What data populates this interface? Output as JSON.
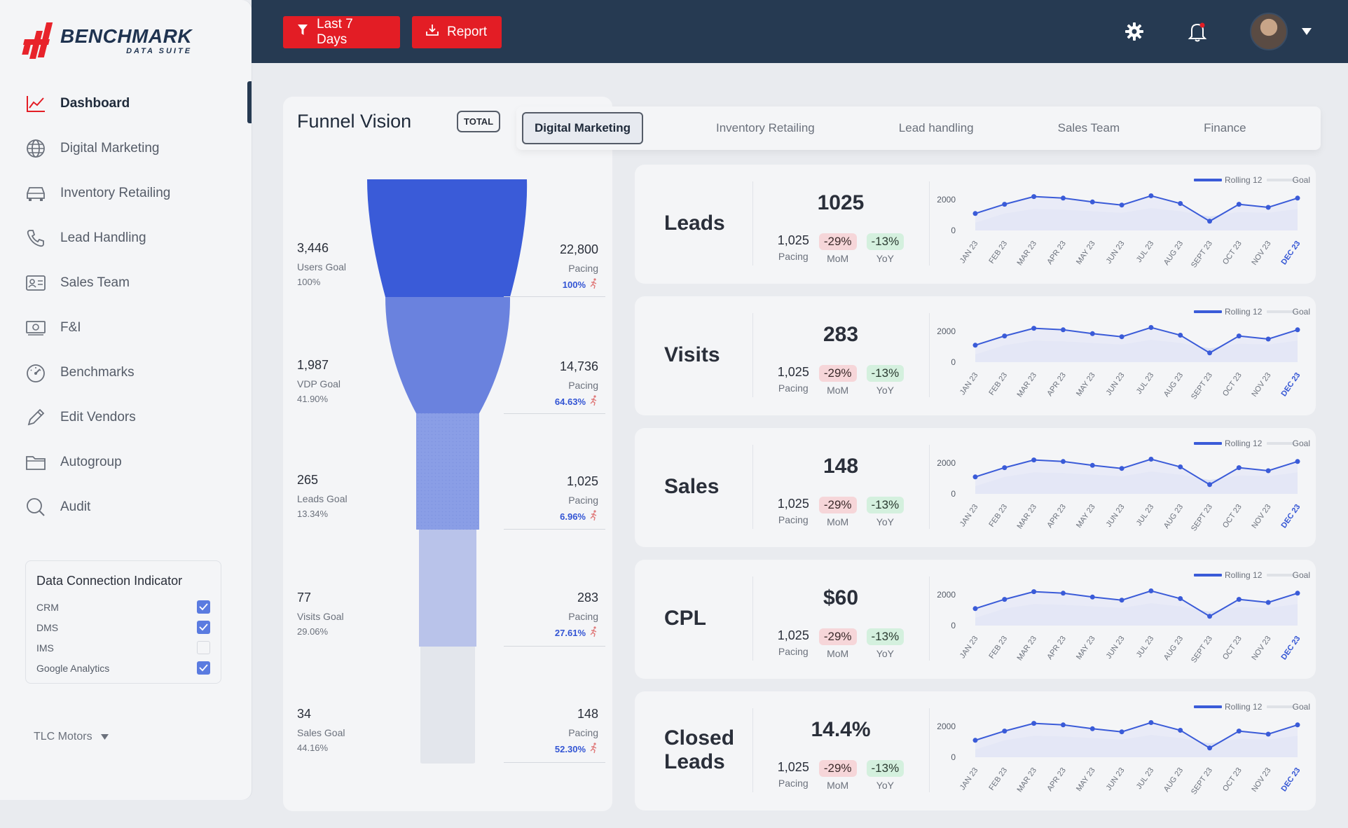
{
  "brand": {
    "name": "BENCHMARK",
    "sub": "DATA SUITE"
  },
  "colors": {
    "header": "#263a52",
    "accent": "#e31d25",
    "primary_blue": "#3355d4"
  },
  "sidebar": {
    "items": [
      {
        "label": "Dashboard",
        "icon": "chart-line-icon",
        "active": true
      },
      {
        "label": "Digital Marketing",
        "icon": "globe-icon"
      },
      {
        "label": "Inventory Retailing",
        "icon": "car-icon"
      },
      {
        "label": "Lead Handling",
        "icon": "phone-icon"
      },
      {
        "label": "Sales Team",
        "icon": "id-card-icon"
      },
      {
        "label": "F&I",
        "icon": "money-icon"
      },
      {
        "label": "Benchmarks",
        "icon": "gauge-icon"
      },
      {
        "label": "Edit Vendors",
        "icon": "pencil-icon"
      },
      {
        "label": "Autogroup",
        "icon": "folder-icon"
      },
      {
        "label": "Audit",
        "icon": "search-icon"
      }
    ],
    "connection": {
      "title": "Data Connection Indicator",
      "items": [
        {
          "label": "CRM",
          "checked": true
        },
        {
          "label": "DMS",
          "checked": true
        },
        {
          "label": "IMS",
          "checked": false
        },
        {
          "label": "Google Analytics",
          "checked": true
        }
      ]
    },
    "tenant": "TLC Motors"
  },
  "header": {
    "filter_label": "Last 7 Days",
    "report_label": "Report"
  },
  "funnel": {
    "title": "Funnel Vision",
    "badge": "TOTAL",
    "stages": [
      {
        "value": "3,446",
        "goal_label": "Users Goal",
        "goal_pct": "100%",
        "pacing_value": "22,800",
        "pacing_label": "Pacing",
        "pacing_pct": "100%"
      },
      {
        "value": "1,987",
        "goal_label": "VDP Goal",
        "goal_pct": "41.90%",
        "pacing_value": "14,736",
        "pacing_label": "Pacing",
        "pacing_pct": "64.63%"
      },
      {
        "value": "265",
        "goal_label": "Leads Goal",
        "goal_pct": "13.34%",
        "pacing_value": "1,025",
        "pacing_label": "Pacing",
        "pacing_pct": "6.96%"
      },
      {
        "value": "77",
        "goal_label": "Visits Goal",
        "goal_pct": "29.06%",
        "pacing_value": "283",
        "pacing_label": "Pacing",
        "pacing_pct": "27.61%"
      },
      {
        "value": "34",
        "goal_label": "Sales Goal",
        "goal_pct": "44.16%",
        "pacing_value": "148",
        "pacing_label": "Pacing",
        "pacing_pct": "52.30%"
      }
    ]
  },
  "tabs": [
    "Digital Marketing",
    "Inventory Retailing",
    "Lead handling",
    "Sales Team",
    "Finance"
  ],
  "chart_common": {
    "legend": {
      "rolling": "Rolling 12",
      "goal": "Goal"
    },
    "y_ticks": [
      "2000",
      "0"
    ],
    "months": [
      "JAN 23",
      "FEB 23",
      "MAR 23",
      "APR 23",
      "MAY 23",
      "JUN 23",
      "JUL 23",
      "AUG 23",
      "SEPT 23",
      "OCT 23",
      "NOV 23",
      "DEC 23"
    ]
  },
  "metrics": [
    {
      "name": "Leads",
      "value": "1025",
      "pacing": "1,025",
      "pacing_label": "Pacing",
      "mom": "-29%",
      "mom_label": "MoM",
      "yoy": "-13%",
      "yoy_label": "YoY"
    },
    {
      "name": "Visits",
      "value": "283",
      "pacing": "1,025",
      "pacing_label": "Pacing",
      "mom": "-29%",
      "mom_label": "MoM",
      "yoy": "-13%",
      "yoy_label": "YoY"
    },
    {
      "name": "Sales",
      "value": "148",
      "pacing": "1,025",
      "pacing_label": "Pacing",
      "mom": "-29%",
      "mom_label": "MoM",
      "yoy": "-13%",
      "yoy_label": "YoY"
    },
    {
      "name": "CPL",
      "value": "$60",
      "pacing": "1,025",
      "pacing_label": "Pacing",
      "mom": "-29%",
      "mom_label": "MoM",
      "yoy": "-13%",
      "yoy_label": "YoY"
    },
    {
      "name": "Closed Leads",
      "value": "14.4%",
      "pacing": "1,025",
      "pacing_label": "Pacing",
      "mom": "-29%",
      "mom_label": "MoM",
      "yoy": "-13%",
      "yoy_label": "YoY"
    }
  ],
  "chart_data": {
    "type": "line",
    "x": [
      "JAN 23",
      "FEB 23",
      "MAR 23",
      "APR 23",
      "MAY 23",
      "JUN 23",
      "JUL 23",
      "AUG 23",
      "SEPT 23",
      "OCT 23",
      "NOV 23",
      "DEC 23"
    ],
    "series": [
      {
        "name": "Rolling 12",
        "values": [
          1100,
          1700,
          2200,
          2100,
          1850,
          1650,
          2250,
          1750,
          600,
          1700,
          1500,
          2100
        ]
      },
      {
        "name": "Goal",
        "values": [
          500,
          1100,
          1400,
          1350,
          1250,
          1150,
          1450,
          1250,
          900,
          1200,
          1150,
          1400
        ]
      }
    ],
    "ylim": [
      0,
      2000
    ],
    "y_ticks": [
      0,
      2000
    ],
    "legend": "top-right"
  }
}
